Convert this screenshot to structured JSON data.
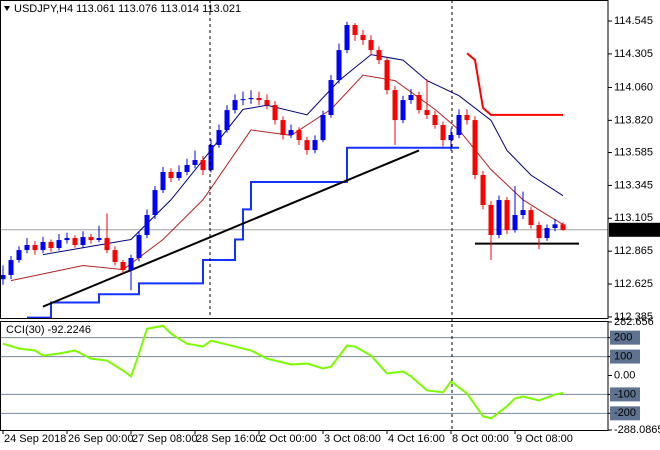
{
  "chart_data": [
    {
      "type": "candlestick",
      "title": "USDJPY,H4  113.061 113.076 113.014 113.021",
      "categories": [
        "24 Sep 2018",
        null,
        null,
        null,
        null,
        null,
        null,
        null,
        "26 Sep 00:00",
        null,
        null,
        null,
        null,
        null,
        null,
        null,
        "27 Sep 08:00",
        null,
        null,
        null,
        null,
        null,
        null,
        null,
        "28 Sep 16:00",
        null,
        null,
        null,
        null,
        null,
        null,
        null,
        "2 Oct 00:00",
        null,
        null,
        null,
        null,
        null,
        null,
        null,
        "3 Oct 08:00",
        null,
        null,
        null,
        null,
        null,
        null,
        null,
        "4 Oct 16:00",
        null,
        null,
        null,
        null,
        null,
        null,
        null,
        "8 Oct 00:00",
        null,
        null,
        null,
        null,
        null,
        null,
        null,
        "9 Oct 08:00",
        null,
        null,
        null,
        null,
        null,
        null
      ],
      "open": [
        112.66,
        112.691,
        112.8,
        112.873,
        112.91,
        112.873,
        112.932,
        112.888,
        112.946,
        112.961,
        112.91,
        112.968,
        112.946,
        112.961,
        112.873,
        112.786,
        112.727,
        112.815,
        112.983,
        113.129,
        113.311,
        113.443,
        113.399,
        113.443,
        113.494,
        113.53,
        113.457,
        113.64,
        113.749,
        113.895,
        113.968,
        113.975,
        113.983,
        113.968,
        113.932,
        113.822,
        113.713,
        113.749,
        113.676,
        113.603,
        113.676,
        113.859,
        114.114,
        114.333,
        114.516,
        114.443,
        114.406,
        114.333,
        114.26,
        114.041,
        113.822,
        113.968,
        114.005,
        113.895,
        113.859,
        113.786,
        113.676,
        113.713,
        113.859,
        113.822,
        113.421,
        113.202,
        112.983,
        113.238,
        113.019,
        113.129,
        113.165,
        113.056,
        112.961,
        113.034,
        113.061
      ],
      "high": [
        112.76,
        112.83,
        112.9,
        112.96,
        112.94,
        112.97,
        112.95,
        112.99,
        113.0,
        112.98,
        113.01,
        112.99,
        113.05,
        113.14,
        112.9,
        112.8,
        112.84,
        113.01,
        113.17,
        113.34,
        113.48,
        113.47,
        113.49,
        113.54,
        113.6,
        113.56,
        113.68,
        113.79,
        113.93,
        114.01,
        114.03,
        114.04,
        114.03,
        114.01,
        113.96,
        113.85,
        113.79,
        113.77,
        113.7,
        113.71,
        113.89,
        114.15,
        114.38,
        114.54,
        114.53,
        114.48,
        114.44,
        114.36,
        114.28,
        114.07,
        114.0,
        114.05,
        114.03,
        114.12,
        113.89,
        113.81,
        113.76,
        113.9,
        113.9,
        113.85,
        113.45,
        113.23,
        113.27,
        113.26,
        113.34,
        113.3,
        113.19,
        113.08,
        113.06,
        113.1,
        113.076
      ],
      "low": [
        112.62,
        112.66,
        112.78,
        112.85,
        112.84,
        112.85,
        112.86,
        112.87,
        112.92,
        112.89,
        112.89,
        112.92,
        112.93,
        112.85,
        112.76,
        112.7,
        112.58,
        112.79,
        112.96,
        113.1,
        113.29,
        113.37,
        113.38,
        113.42,
        113.47,
        113.42,
        113.44,
        113.62,
        113.73,
        113.87,
        113.93,
        113.94,
        113.93,
        113.9,
        113.79,
        113.68,
        113.69,
        113.64,
        113.57,
        113.58,
        113.66,
        113.84,
        114.09,
        114.31,
        114.4,
        114.37,
        114.3,
        114.23,
        114.01,
        113.64,
        113.8,
        113.94,
        113.87,
        113.83,
        113.76,
        113.63,
        113.6,
        113.69,
        113.79,
        113.39,
        113.17,
        112.8,
        112.96,
        112.99,
        113.0,
        113.1,
        113.03,
        112.88,
        112.94,
        113.01,
        113.014
      ],
      "close": [
        112.691,
        112.8,
        112.873,
        112.91,
        112.873,
        112.932,
        112.888,
        112.946,
        112.961,
        112.91,
        112.968,
        112.946,
        112.961,
        112.873,
        112.786,
        112.727,
        112.815,
        112.983,
        113.129,
        113.311,
        113.443,
        113.399,
        113.443,
        113.494,
        113.53,
        113.457,
        113.64,
        113.749,
        113.895,
        113.968,
        113.975,
        113.983,
        113.968,
        113.932,
        113.822,
        113.713,
        113.749,
        113.676,
        113.603,
        113.676,
        113.859,
        114.114,
        114.333,
        114.516,
        114.443,
        114.406,
        114.333,
        114.26,
        114.041,
        113.822,
        113.968,
        114.005,
        113.895,
        113.859,
        113.786,
        113.676,
        113.713,
        113.859,
        113.822,
        113.421,
        113.202,
        112.983,
        113.238,
        113.019,
        113.129,
        113.165,
        113.056,
        112.961,
        113.034,
        113.061,
        113.021
      ],
      "up_color": "#0000ff",
      "down_color": "#ff0000",
      "ylim": [
        112.377,
        114.684
      ],
      "yticks": [
        114.545,
        114.305,
        {
          "value": 114.06,
          "label": "114.060"
        },
        {
          "value": 113.82,
          "label": "113.820"
        },
        113.585,
        113.345,
        113.105,
        112.865,
        112.625,
        112.385
      ],
      "current_price": 113.021,
      "overlays": [
        {
          "style": "line",
          "color": "#b22222",
          "width": 1,
          "x": [
            1,
            10,
            15,
            20,
            25,
            31,
            36,
            41,
            45,
            49,
            54,
            57,
            61,
            65,
            68,
            70
          ],
          "values": [
            112.65,
            112.76,
            112.73,
            112.95,
            113.24,
            113.75,
            113.71,
            113.9,
            114.15,
            114.11,
            113.9,
            113.75,
            113.46,
            113.24,
            113.13,
            113.06
          ]
        },
        {
          "style": "line",
          "color": "#000080",
          "width": 1,
          "x": [
            5,
            12,
            16,
            21,
            25,
            30,
            33,
            38,
            42,
            46,
            50,
            53,
            57,
            61,
            63,
            66,
            70
          ],
          "values": [
            112.84,
            112.91,
            112.95,
            113.24,
            113.53,
            113.9,
            113.93,
            113.86,
            114.11,
            114.3,
            114.26,
            114.11,
            114.0,
            113.82,
            113.6,
            113.42,
            113.27
          ]
        },
        {
          "style": "step",
          "color": "#1432ff",
          "width": 2,
          "x": [
            3,
            6,
            12,
            17,
            25,
            29,
            30,
            31,
            42,
            43,
            57
          ],
          "values": [
            112.38,
            112.49,
            112.55,
            112.63,
            112.8,
            112.95,
            113.17,
            113.37,
            113.37,
            113.62,
            113.62
          ]
        },
        {
          "style": "line",
          "color": "#ff0000",
          "width": 2,
          "x": [
            58,
            59,
            60,
            61,
            70
          ],
          "values": [
            114.31,
            114.26,
            113.91,
            113.86,
            113.86
          ]
        },
        {
          "style": "line",
          "color": "#000000",
          "width": 2,
          "x": [
            5,
            52
          ],
          "values": [
            112.46,
            113.6
          ]
        },
        {
          "style": "line",
          "color": "#000000",
          "width": 2,
          "x": [
            59,
            72
          ],
          "values": [
            112.92,
            112.92
          ]
        }
      ]
    },
    {
      "type": "line",
      "title": "CCI(30) -92.2246",
      "color": "#7cfc00",
      "x": [
        0,
        2,
        4,
        5,
        7,
        9,
        11,
        13,
        15,
        16,
        17,
        18,
        20,
        21,
        23,
        25,
        26,
        29,
        31,
        33,
        36,
        38,
        40,
        41,
        43,
        44,
        46,
        48,
        50,
        51,
        53,
        55,
        56,
        58,
        60,
        61,
        63,
        64,
        65,
        67,
        69,
        70
      ],
      "values": [
        168,
        142,
        132,
        105,
        116,
        132,
        89,
        79,
        26,
        -5,
        116,
        247,
        263,
        221,
        168,
        153,
        184,
        153,
        132,
        89,
        58,
        63,
        37,
        47,
        158,
        153,
        105,
        11,
        21,
        -5,
        -79,
        -89,
        -32,
        -95,
        -216,
        -226,
        -163,
        -121,
        -111,
        -132,
        -100,
        -92.2246
      ],
      "ylim": [
        -288.0865,
        282.656
      ],
      "yticks": [
        282.656,
        200,
        100,
        {
          "value": 0,
          "label": "0.00"
        },
        -100,
        -200,
        -288.0865
      ],
      "levels": [
        200,
        100,
        -100,
        -200
      ]
    }
  ]
}
